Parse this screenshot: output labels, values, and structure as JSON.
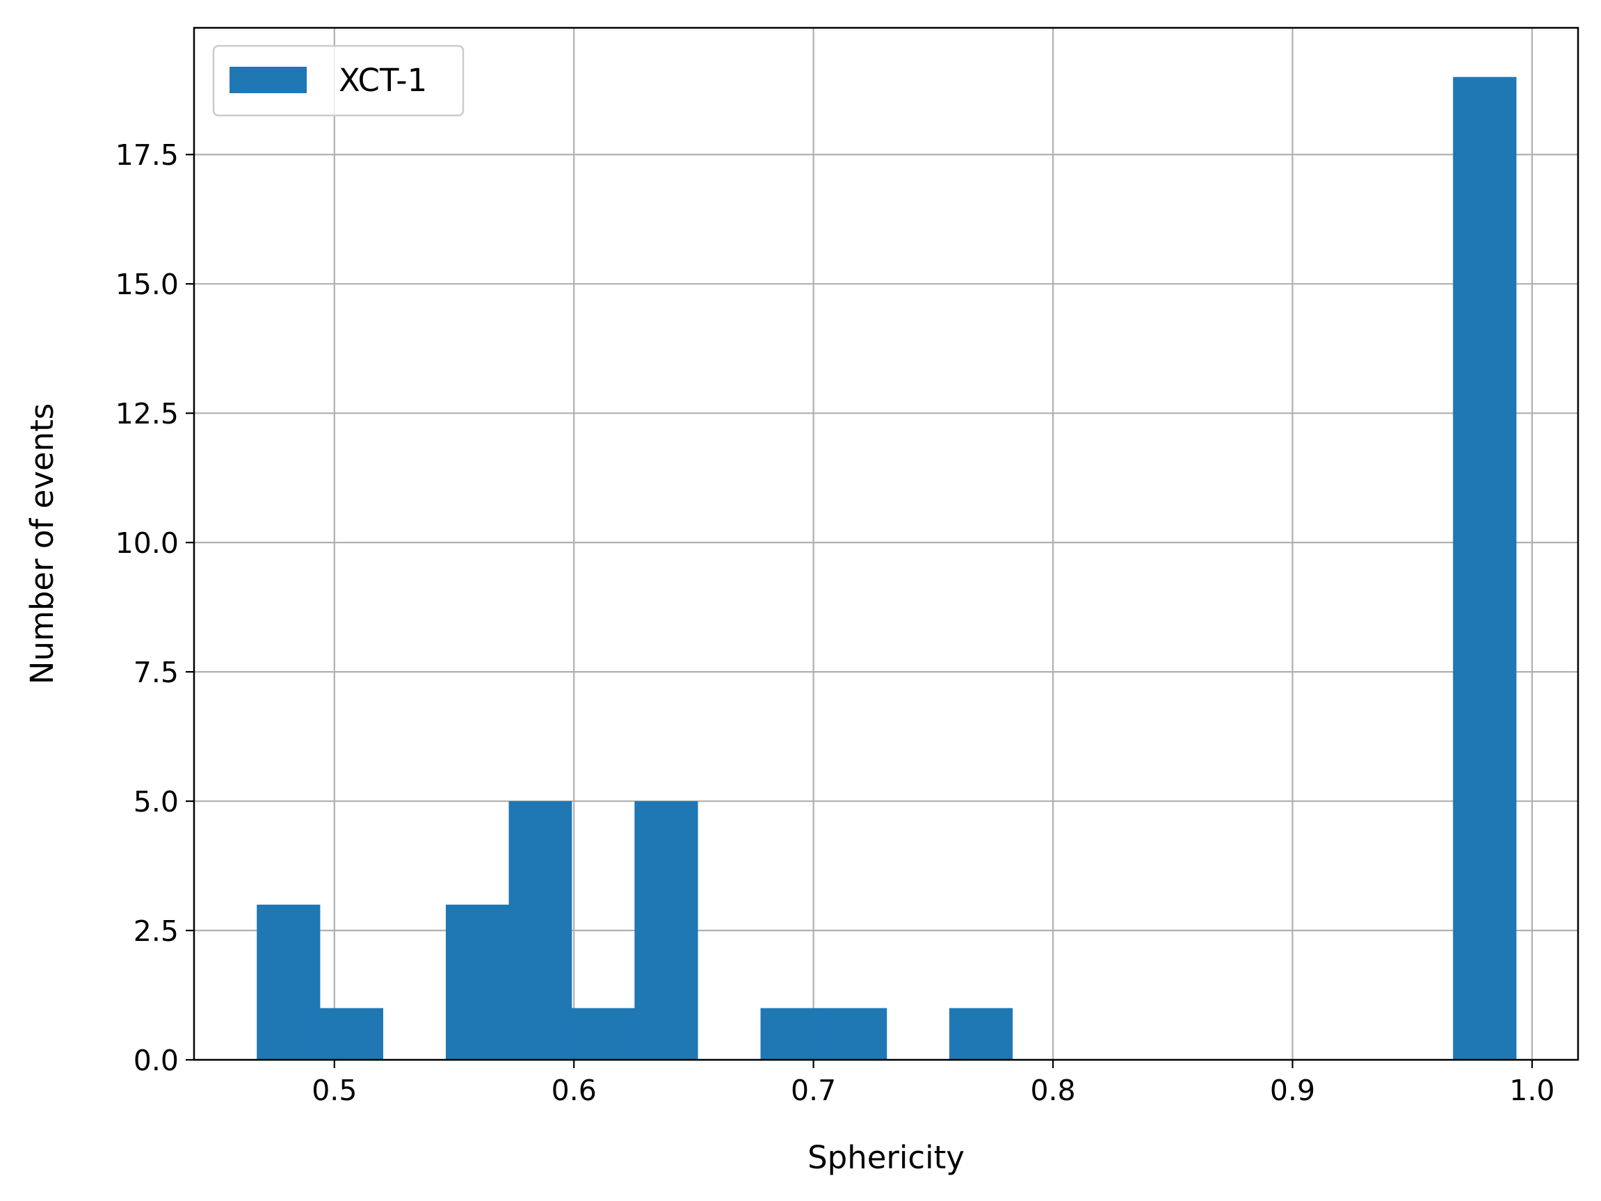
{
  "chart_data": {
    "type": "bar",
    "title": "",
    "xlabel": "Sphericity",
    "ylabel": "Number of events",
    "xlim": [
      0.4414,
      1.0192
    ],
    "ylim": [
      0,
      19.95
    ],
    "grid": true,
    "legend_position": "upper left",
    "xticks": [
      0.5,
      0.6,
      0.7,
      0.8,
      0.9,
      1.0
    ],
    "xtick_labels": [
      "0.5",
      "0.6",
      "0.7",
      "0.8",
      "0.9",
      "1.0"
    ],
    "yticks": [
      0,
      2.5,
      5,
      7.5,
      10,
      12.5,
      15,
      17.5
    ],
    "ytick_labels": [
      "0.0",
      "2.5",
      "5.0",
      "7.5",
      "10.0",
      "12.5",
      "15.0",
      "17.5"
    ],
    "bin_edges": [
      0.4676,
      0.4939,
      0.5202,
      0.5465,
      0.5728,
      0.599,
      0.6253,
      0.6516,
      0.6779,
      0.7042,
      0.7305,
      0.7567,
      0.783,
      0.8093,
      0.8356,
      0.8619,
      0.8881,
      0.9144,
      0.9407,
      0.967,
      0.9933
    ],
    "series": [
      {
        "name": "XCT-1",
        "color": "#1f77b4",
        "values": [
          3,
          1,
          0,
          3,
          5,
          1,
          5,
          0,
          1,
          1,
          0,
          1,
          0,
          0,
          0,
          0,
          0,
          0,
          0,
          19
        ]
      }
    ]
  }
}
